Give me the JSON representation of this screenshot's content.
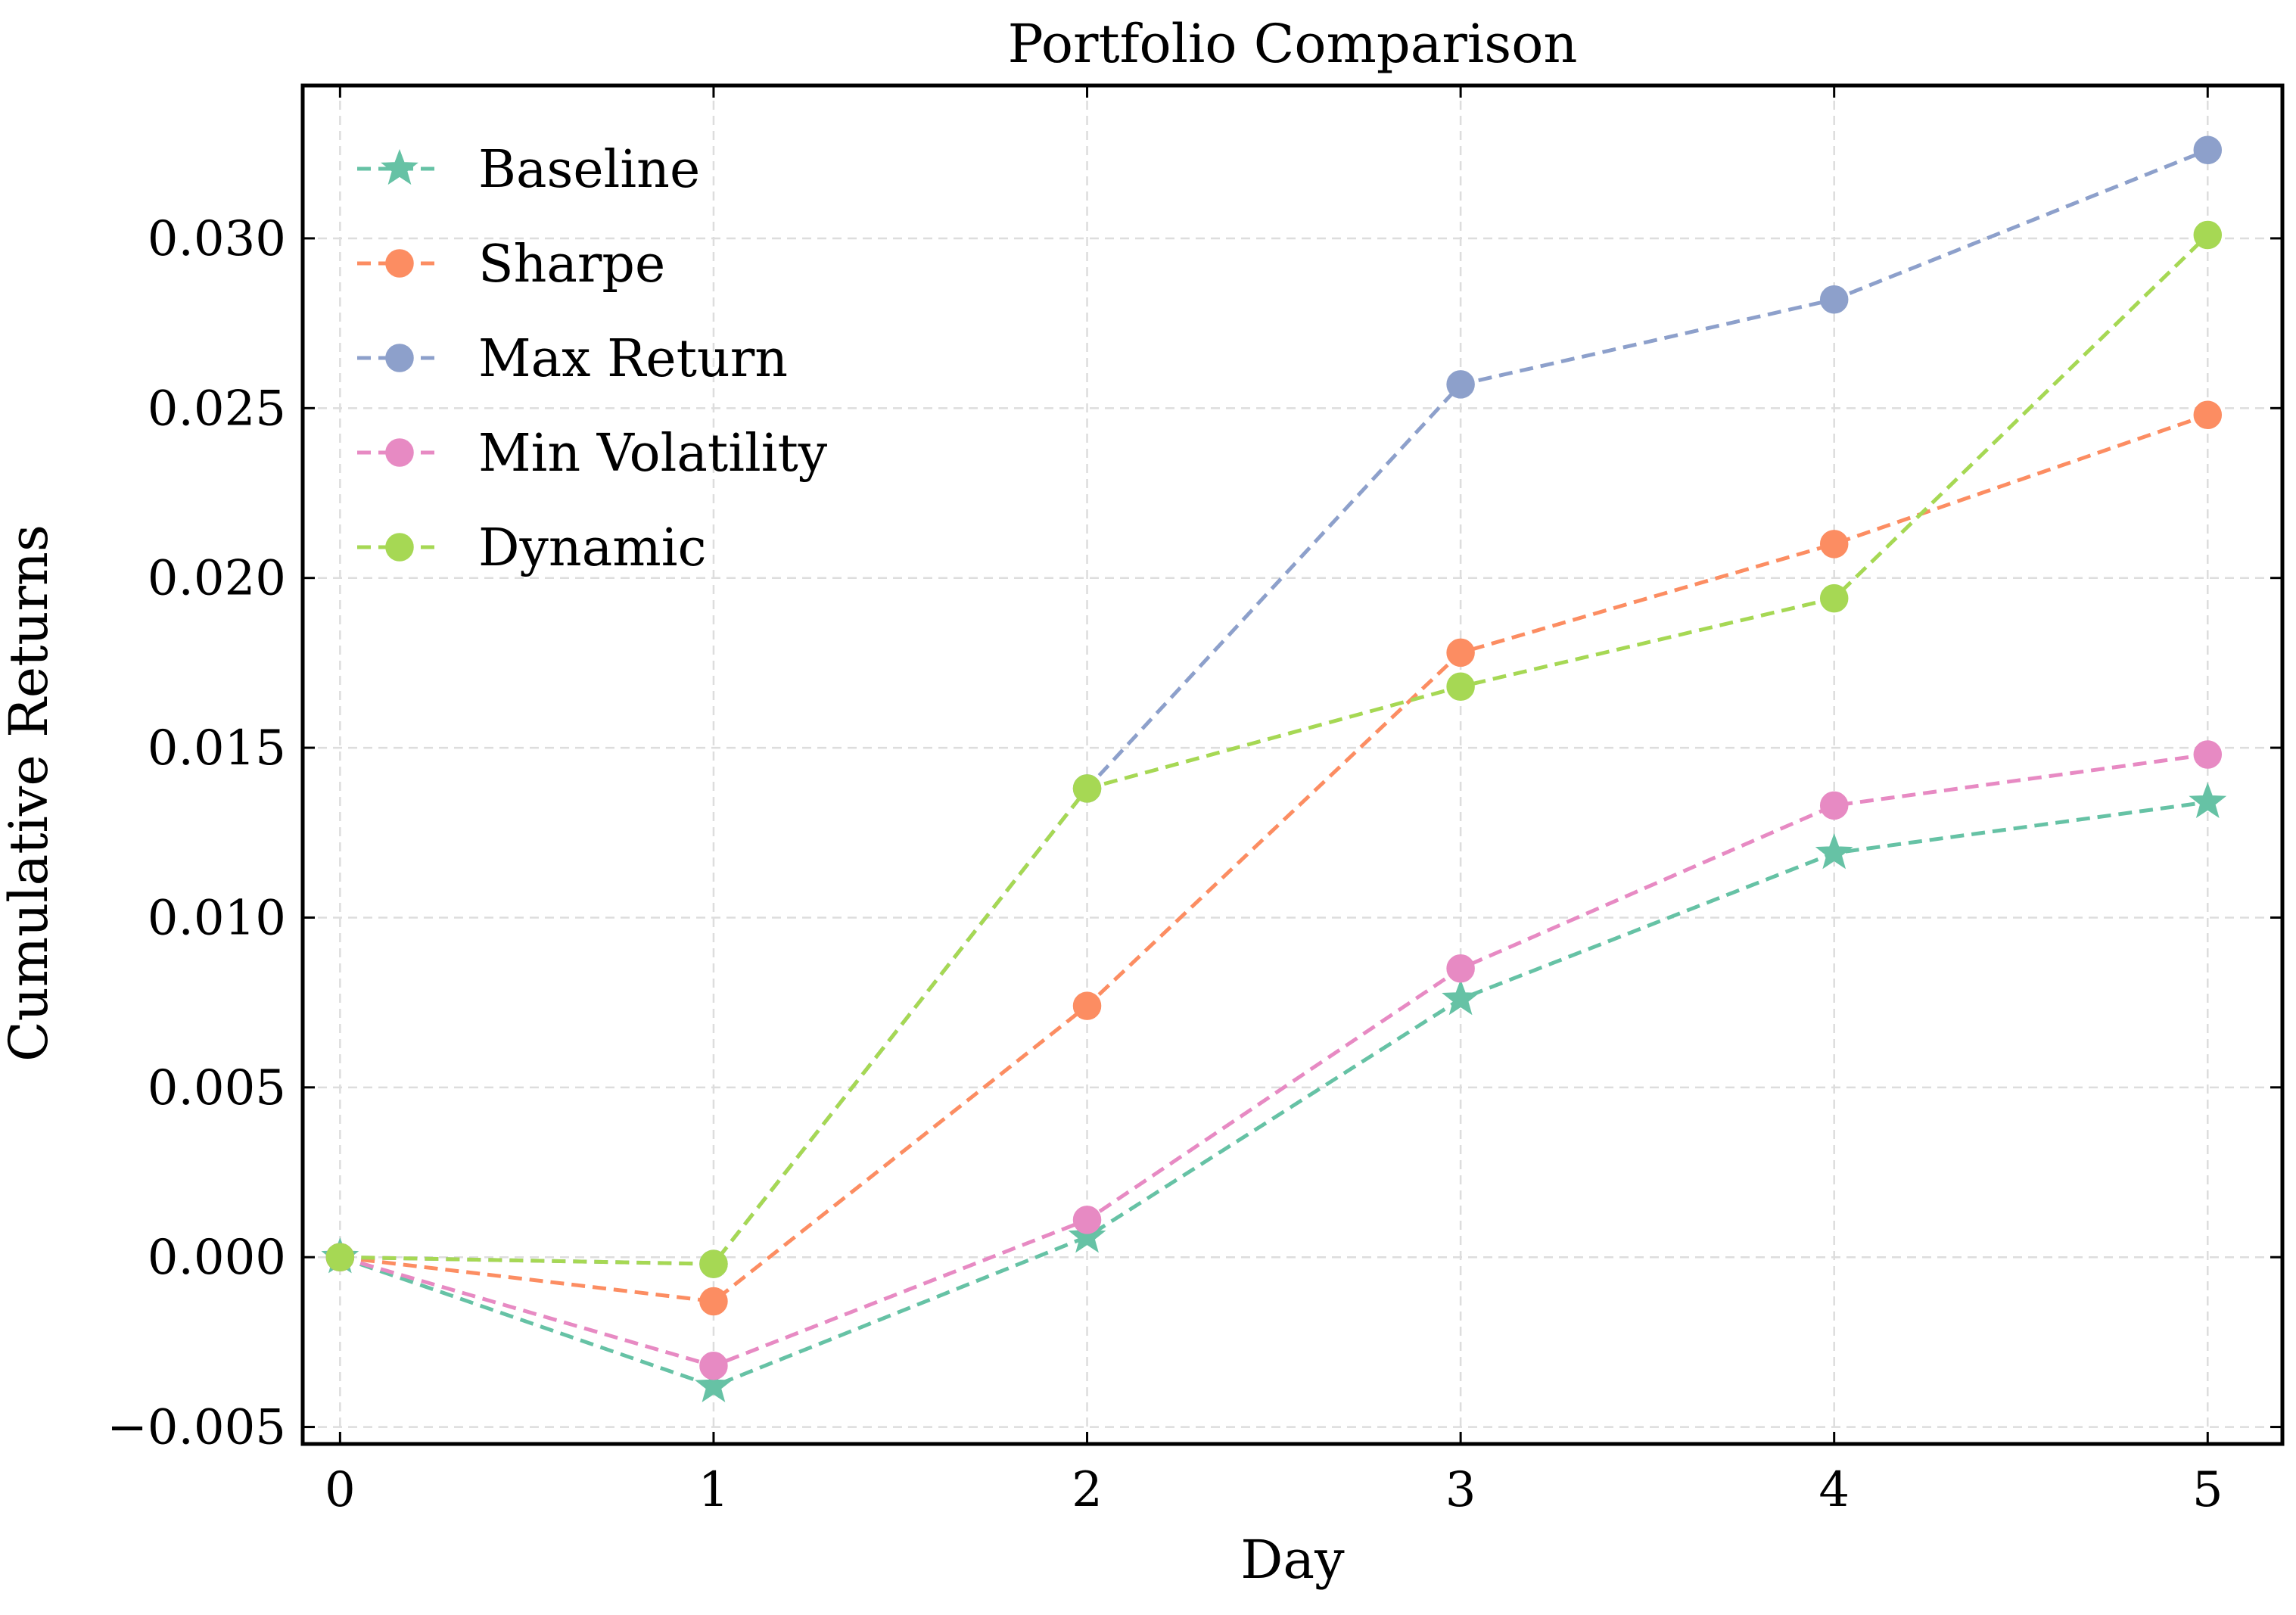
{
  "chart_data": {
    "type": "line",
    "title": "Portfolio Comparison",
    "xlabel": "Day",
    "ylabel": "Cumulative Returns",
    "x": [
      0,
      1,
      2,
      3,
      4,
      5
    ],
    "xticks": [
      "0",
      "1",
      "2",
      "3",
      "4",
      "5"
    ],
    "yticks": [
      "−0.005",
      "0.000",
      "0.005",
      "0.010",
      "0.015",
      "0.020",
      "0.025",
      "0.030"
    ],
    "ytick_values": [
      -0.005,
      0.0,
      0.005,
      0.01,
      0.015,
      0.02,
      0.025,
      0.03
    ],
    "xlim": [
      -0.1,
      5.2
    ],
    "ylim": [
      -0.0055,
      0.0345
    ],
    "grid": true,
    "legend_position": "upper-left",
    "series": [
      {
        "name": "Baseline",
        "color": "#66c2a5",
        "marker": "star",
        "values": [
          0.0,
          -0.0038,
          0.0006,
          0.0076,
          0.0119,
          0.0134
        ]
      },
      {
        "name": "Sharpe",
        "color": "#fc8d62",
        "marker": "circle",
        "values": [
          0.0,
          -0.0013,
          0.0074,
          0.0178,
          0.021,
          0.0248
        ]
      },
      {
        "name": "Max Return",
        "color": "#8da0cb",
        "marker": "circle",
        "values": [
          0.0,
          -0.0002,
          0.0138,
          0.0257,
          0.0282,
          0.0326
        ]
      },
      {
        "name": "Min Volatility",
        "color": "#e78ac3",
        "marker": "circle",
        "values": [
          0.0,
          -0.0032,
          0.0011,
          0.0085,
          0.0133,
          0.0148
        ]
      },
      {
        "name": "Dynamic",
        "color": "#a6d854",
        "marker": "circle",
        "values": [
          0.0,
          -0.0002,
          0.0138,
          0.0168,
          0.0194,
          0.0301
        ]
      }
    ]
  }
}
